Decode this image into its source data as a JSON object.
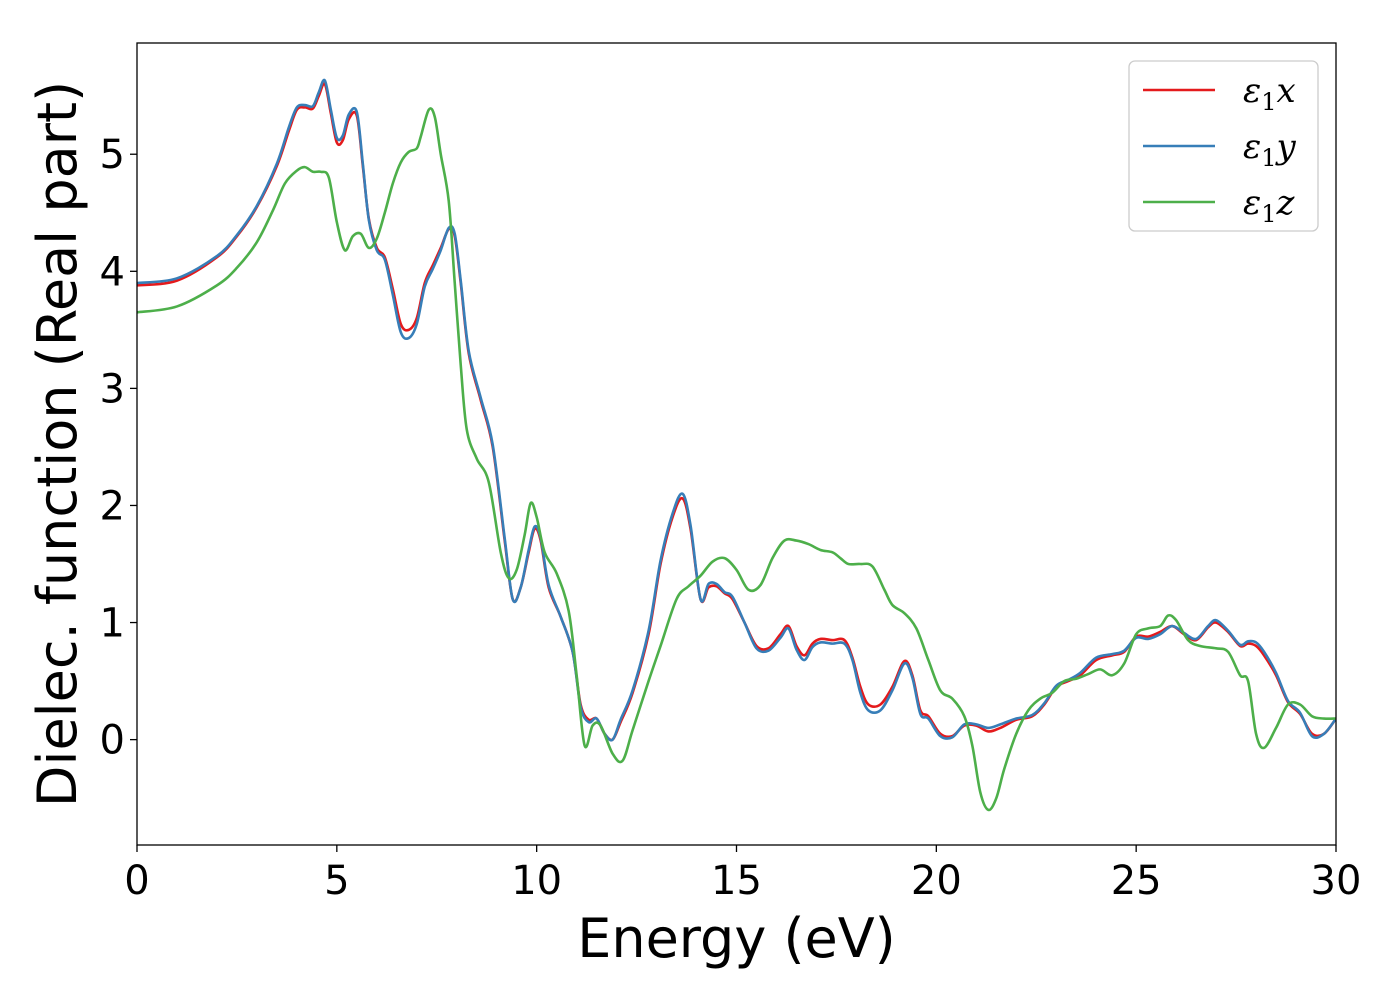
{
  "chart_data": {
    "type": "line",
    "xlabel": "Energy (eV)",
    "ylabel": "Dielec. function (Real part)",
    "xlim": [
      0,
      30
    ],
    "ylim": [
      -0.9,
      5.95
    ],
    "xticks": [
      0,
      5,
      10,
      15,
      20,
      25,
      30
    ],
    "yticks": [
      0,
      1,
      2,
      3,
      4,
      5
    ],
    "grid": false,
    "legend_position": "top-right",
    "series": [
      {
        "name": "ε₁x",
        "label_main": "ε",
        "label_sub": "1",
        "label_var": "x",
        "color": "#e41a1c",
        "x": [
          0,
          1,
          2,
          2.5,
          3,
          3.5,
          3.8,
          4.0,
          4.2,
          4.4,
          4.55,
          4.7,
          4.85,
          5.0,
          5.15,
          5.3,
          5.5,
          5.65,
          5.8,
          6.0,
          6.2,
          6.4,
          6.6,
          6.8,
          7.0,
          7.2,
          7.4,
          7.6,
          7.8,
          7.95,
          8.1,
          8.3,
          8.6,
          8.9,
          9.2,
          9.4,
          9.6,
          9.8,
          9.95,
          10.1,
          10.3,
          10.6,
          10.9,
          11.1,
          11.3,
          11.5,
          11.7,
          11.9,
          12.1,
          12.4,
          12.8,
          13.1,
          13.4,
          13.65,
          13.85,
          14.1,
          14.3,
          14.5,
          14.7,
          14.9,
          15.2,
          15.5,
          15.8,
          16.1,
          16.3,
          16.5,
          16.7,
          16.9,
          17.1,
          17.4,
          17.7,
          17.9,
          18.1,
          18.3,
          18.6,
          18.9,
          19.2,
          19.4,
          19.6,
          19.8,
          20.1,
          20.4,
          20.7,
          21.0,
          21.3,
          21.6,
          22.0,
          22.4,
          22.7,
          23.0,
          23.3,
          23.6,
          24.0,
          24.4,
          24.7,
          25.0,
          25.3,
          25.6,
          25.9,
          26.2,
          26.5,
          26.8,
          27.0,
          27.3,
          27.6,
          27.8,
          28.0,
          28.2,
          28.5,
          28.8,
          29.1,
          29.4,
          29.7,
          30.0
        ],
        "y": [
          3.88,
          3.92,
          4.12,
          4.3,
          4.55,
          4.9,
          5.2,
          5.38,
          5.4,
          5.39,
          5.5,
          5.6,
          5.35,
          5.1,
          5.12,
          5.3,
          5.33,
          4.9,
          4.45,
          4.2,
          4.12,
          3.85,
          3.55,
          3.5,
          3.6,
          3.9,
          4.05,
          4.2,
          4.36,
          4.3,
          3.9,
          3.3,
          2.9,
          2.5,
          1.7,
          1.2,
          1.3,
          1.6,
          1.8,
          1.7,
          1.3,
          1.05,
          0.75,
          0.3,
          0.17,
          0.18,
          0.05,
          0.0,
          0.15,
          0.4,
          0.9,
          1.5,
          1.9,
          2.06,
          1.8,
          1.2,
          1.3,
          1.31,
          1.25,
          1.2,
          1.0,
          0.8,
          0.78,
          0.9,
          0.97,
          0.8,
          0.72,
          0.82,
          0.86,
          0.85,
          0.85,
          0.7,
          0.45,
          0.3,
          0.3,
          0.45,
          0.67,
          0.55,
          0.25,
          0.2,
          0.05,
          0.03,
          0.12,
          0.12,
          0.07,
          0.1,
          0.17,
          0.2,
          0.3,
          0.45,
          0.5,
          0.55,
          0.68,
          0.72,
          0.75,
          0.88,
          0.88,
          0.92,
          0.97,
          0.9,
          0.85,
          0.96,
          1.0,
          0.92,
          0.8,
          0.82,
          0.8,
          0.72,
          0.55,
          0.32,
          0.22,
          0.05,
          0.05,
          0.18
        ]
      },
      {
        "name": "ε₁y",
        "label_main": "ε",
        "label_sub": "1",
        "label_var": "y",
        "color": "#377eb8",
        "x": [
          0,
          1,
          2,
          2.5,
          3,
          3.5,
          3.8,
          4.0,
          4.2,
          4.4,
          4.55,
          4.7,
          4.85,
          5.0,
          5.15,
          5.3,
          5.5,
          5.65,
          5.8,
          6.0,
          6.2,
          6.4,
          6.6,
          6.8,
          7.0,
          7.2,
          7.4,
          7.6,
          7.8,
          7.95,
          8.1,
          8.3,
          8.6,
          8.9,
          9.2,
          9.4,
          9.6,
          9.8,
          9.95,
          10.1,
          10.3,
          10.6,
          10.9,
          11.1,
          11.3,
          11.5,
          11.7,
          11.9,
          12.1,
          12.4,
          12.8,
          13.1,
          13.4,
          13.65,
          13.85,
          14.1,
          14.3,
          14.5,
          14.7,
          14.9,
          15.2,
          15.5,
          15.8,
          16.1,
          16.3,
          16.5,
          16.7,
          16.9,
          17.1,
          17.4,
          17.7,
          17.9,
          18.1,
          18.3,
          18.6,
          18.9,
          19.2,
          19.4,
          19.6,
          19.8,
          20.1,
          20.4,
          20.7,
          21.0,
          21.3,
          21.6,
          22.0,
          22.4,
          22.7,
          23.0,
          23.3,
          23.6,
          24.0,
          24.4,
          24.7,
          25.0,
          25.3,
          25.6,
          25.9,
          26.2,
          26.5,
          26.8,
          27.0,
          27.3,
          27.6,
          27.8,
          28.0,
          28.2,
          28.5,
          28.8,
          29.1,
          29.4,
          29.7,
          30.0
        ],
        "y": [
          3.9,
          3.94,
          4.13,
          4.31,
          4.56,
          4.92,
          5.23,
          5.4,
          5.42,
          5.41,
          5.53,
          5.63,
          5.38,
          5.14,
          5.16,
          5.34,
          5.36,
          4.92,
          4.44,
          4.18,
          4.1,
          3.8,
          3.48,
          3.43,
          3.55,
          3.87,
          4.02,
          4.18,
          4.37,
          4.32,
          3.92,
          3.32,
          2.92,
          2.52,
          1.72,
          1.2,
          1.3,
          1.62,
          1.82,
          1.72,
          1.32,
          1.05,
          0.75,
          0.28,
          0.15,
          0.18,
          0.05,
          0.0,
          0.17,
          0.42,
          0.93,
          1.53,
          1.93,
          2.1,
          1.83,
          1.2,
          1.33,
          1.33,
          1.26,
          1.22,
          1.0,
          0.78,
          0.76,
          0.87,
          0.95,
          0.77,
          0.68,
          0.79,
          0.83,
          0.82,
          0.82,
          0.68,
          0.4,
          0.25,
          0.25,
          0.42,
          0.65,
          0.53,
          0.22,
          0.18,
          0.03,
          0.02,
          0.13,
          0.13,
          0.1,
          0.13,
          0.18,
          0.21,
          0.31,
          0.46,
          0.51,
          0.57,
          0.7,
          0.73,
          0.76,
          0.87,
          0.86,
          0.9,
          0.97,
          0.91,
          0.86,
          0.97,
          1.02,
          0.93,
          0.81,
          0.84,
          0.83,
          0.75,
          0.57,
          0.33,
          0.23,
          0.03,
          0.05,
          0.18
        ]
      },
      {
        "name": "ε₁z",
        "label_main": "ε",
        "label_sub": "1",
        "label_var": "z",
        "color": "#4daf4a",
        "x": [
          0,
          1,
          2,
          2.5,
          3,
          3.4,
          3.7,
          4.0,
          4.2,
          4.4,
          4.6,
          4.8,
          5.0,
          5.2,
          5.4,
          5.6,
          5.8,
          6.0,
          6.2,
          6.4,
          6.6,
          6.8,
          7.0,
          7.1,
          7.3,
          7.45,
          7.6,
          7.8,
          7.95,
          8.1,
          8.25,
          8.5,
          8.8,
          9.1,
          9.3,
          9.5,
          9.7,
          9.85,
          10.0,
          10.2,
          10.5,
          10.8,
          11.0,
          11.2,
          11.4,
          11.6,
          11.9,
          12.15,
          12.4,
          12.8,
          13.1,
          13.5,
          13.8,
          14.1,
          14.4,
          14.7,
          15.0,
          15.3,
          15.6,
          15.9,
          16.2,
          16.5,
          16.8,
          17.1,
          17.4,
          17.6,
          17.8,
          18.1,
          18.4,
          18.7,
          18.9,
          19.2,
          19.5,
          19.8,
          20.1,
          20.4,
          20.7,
          20.9,
          21.1,
          21.3,
          21.5,
          21.7,
          22.0,
          22.3,
          22.6,
          22.9,
          23.2,
          23.5,
          23.8,
          24.1,
          24.4,
          24.7,
          25.0,
          25.3,
          25.6,
          25.8,
          26.0,
          26.3,
          26.6,
          27.0,
          27.3,
          27.6,
          27.8,
          28.0,
          28.2,
          28.5,
          28.8,
          29.1,
          29.4,
          29.7,
          30.0
        ],
        "y": [
          3.65,
          3.7,
          3.88,
          4.03,
          4.25,
          4.52,
          4.75,
          4.86,
          4.89,
          4.85,
          4.85,
          4.8,
          4.42,
          4.18,
          4.3,
          4.32,
          4.2,
          4.28,
          4.5,
          4.75,
          4.93,
          5.02,
          5.05,
          5.15,
          5.38,
          5.32,
          5.0,
          4.6,
          3.9,
          3.2,
          2.65,
          2.4,
          2.2,
          1.6,
          1.38,
          1.45,
          1.75,
          2.02,
          1.9,
          1.6,
          1.42,
          1.1,
          0.55,
          -0.05,
          0.12,
          0.12,
          -0.12,
          -0.18,
          0.08,
          0.5,
          0.8,
          1.2,
          1.31,
          1.4,
          1.52,
          1.55,
          1.45,
          1.28,
          1.32,
          1.55,
          1.7,
          1.7,
          1.67,
          1.62,
          1.6,
          1.55,
          1.5,
          1.5,
          1.48,
          1.28,
          1.15,
          1.08,
          0.95,
          0.68,
          0.42,
          0.35,
          0.2,
          -0.05,
          -0.45,
          -0.6,
          -0.5,
          -0.25,
          0.05,
          0.25,
          0.35,
          0.4,
          0.5,
          0.52,
          0.56,
          0.6,
          0.55,
          0.65,
          0.9,
          0.95,
          0.97,
          1.06,
          1.02,
          0.85,
          0.8,
          0.78,
          0.75,
          0.55,
          0.5,
          0.05,
          -0.07,
          0.1,
          0.3,
          0.3,
          0.2,
          0.18,
          0.18
        ]
      }
    ]
  }
}
